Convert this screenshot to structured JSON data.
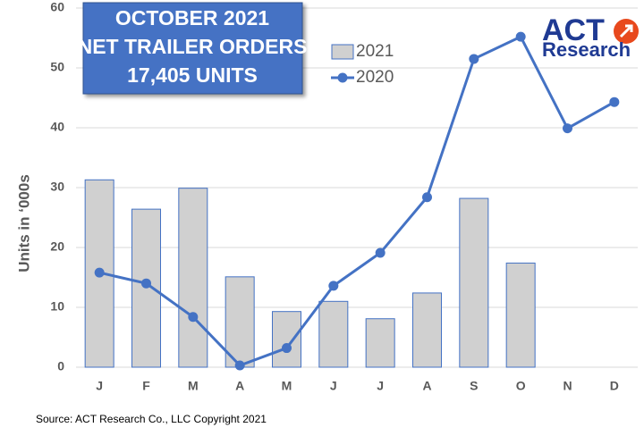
{
  "chart_data": {
    "type": "bar",
    "title": [
      "OCTOBER 2021",
      "NET TRAILER ORDERS",
      "17,405 UNITS"
    ],
    "y_label": "Units in ‘000s",
    "source": "Source: ACT Research Co., LLC  Copyright 2021",
    "logo": [
      "ACT",
      "Research"
    ],
    "categories": [
      "J",
      "F",
      "M",
      "A",
      "M",
      "J",
      "J",
      "A",
      "S",
      "O",
      "N",
      "D"
    ],
    "series": [
      {
        "name": "2021",
        "type": "bar",
        "color": "#d0d0d0",
        "values": [
          31.3,
          26.4,
          29.9,
          15.1,
          9.3,
          11.0,
          8.1,
          12.4,
          28.2,
          17.4,
          null,
          null
        ]
      },
      {
        "name": "2020",
        "type": "line",
        "color": "#4472c4",
        "values": [
          15.8,
          14.0,
          8.4,
          0.3,
          3.2,
          13.6,
          19.1,
          28.4,
          51.5,
          55.2,
          39.9,
          44.3
        ]
      }
    ],
    "ylim": [
      0,
      60
    ],
    "yticks": [
      0,
      10,
      20,
      30,
      40,
      50,
      60
    ],
    "grid": true
  }
}
